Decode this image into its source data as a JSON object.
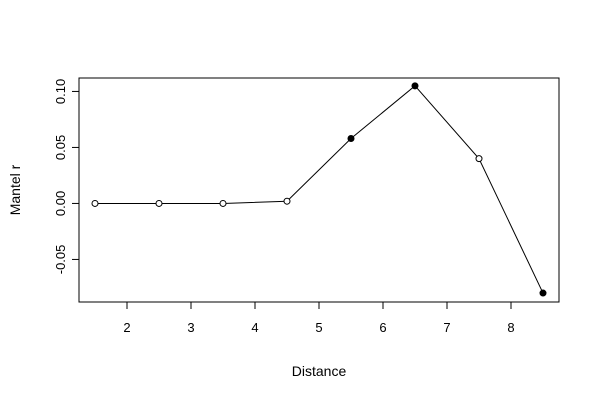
{
  "chart_data": {
    "type": "line",
    "title": "",
    "xlabel": "Distance",
    "ylabel": "Mantel r",
    "xlim": [
      1.25,
      8.75
    ],
    "ylim": [
      -0.088,
      0.112
    ],
    "x_ticks": [
      2,
      3,
      4,
      5,
      6,
      7,
      8
    ],
    "x_tick_labels": [
      "2",
      "3",
      "4",
      "5",
      "6",
      "7",
      "8"
    ],
    "y_ticks": [
      -0.05,
      0.0,
      0.05,
      0.1
    ],
    "y_tick_labels": [
      "-0.05",
      "0.00",
      "0.05",
      "0.10"
    ],
    "grid": false,
    "legend": "none",
    "series": [
      {
        "x": [
          1.5,
          2.5,
          3.5,
          4.5,
          5.5,
          6.5,
          7.5,
          8.5
        ],
        "y": [
          0.0,
          0.0,
          0.0,
          0.002,
          0.058,
          0.105,
          0.04,
          -0.08
        ],
        "significant": [
          false,
          false,
          false,
          false,
          true,
          true,
          false,
          true
        ],
        "color": "#000000"
      }
    ]
  }
}
